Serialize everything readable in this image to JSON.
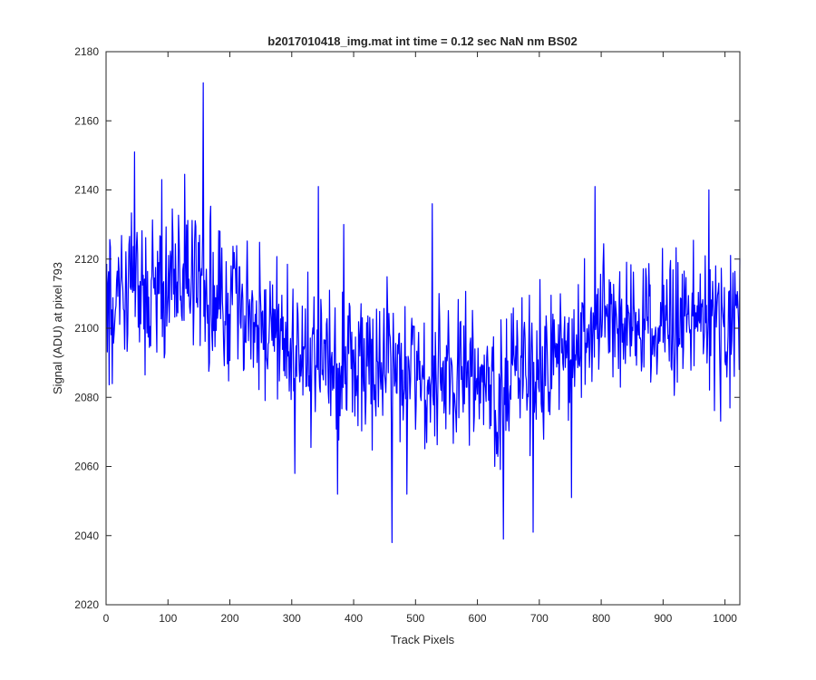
{
  "chart_data": {
    "type": "line",
    "title": "b2017010418_img.mat int time = 0.12 sec  NaN nm BS02",
    "xlabel": "Track Pixels",
    "ylabel": "Signal (ADU) at pixel 793",
    "xlim": [
      0,
      1024
    ],
    "ylim": [
      2020,
      2180
    ],
    "xticks": [
      0,
      100,
      200,
      300,
      400,
      500,
      600,
      700,
      800,
      900,
      1000
    ],
    "yticks": [
      2020,
      2040,
      2060,
      2080,
      2100,
      2120,
      2140,
      2160,
      2180
    ],
    "series": [
      {
        "name": "Signal",
        "color": "#0000ff",
        "trend_x": [
          1,
          50,
          100,
          150,
          200,
          250,
          300,
          350,
          400,
          450,
          500,
          550,
          600,
          650,
          700,
          750,
          800,
          850,
          900,
          950,
          1000,
          1024
        ],
        "trend_y": [
          2112,
          2113,
          2112,
          2113,
          2107,
          2102,
          2093,
          2090,
          2090,
          2089,
          2088,
          2086,
          2084,
          2084,
          2088,
          2094,
          2100,
          2102,
          2100,
          2104,
          2100,
          2100
        ],
        "n_points": 1024,
        "noise_amplitude": 14,
        "extremes": [
          {
            "x": 46,
            "y": 2151
          },
          {
            "x": 90,
            "y": 2143
          },
          {
            "x": 157,
            "y": 2171
          },
          {
            "x": 305,
            "y": 2058
          },
          {
            "x": 343,
            "y": 2141
          },
          {
            "x": 374,
            "y": 2052
          },
          {
            "x": 384,
            "y": 2130
          },
          {
            "x": 462,
            "y": 2038
          },
          {
            "x": 486,
            "y": 2052
          },
          {
            "x": 527,
            "y": 2136
          },
          {
            "x": 642,
            "y": 2039
          },
          {
            "x": 690,
            "y": 2041
          },
          {
            "x": 752,
            "y": 2051
          },
          {
            "x": 790,
            "y": 2141
          },
          {
            "x": 974,
            "y": 2140
          }
        ]
      }
    ]
  }
}
